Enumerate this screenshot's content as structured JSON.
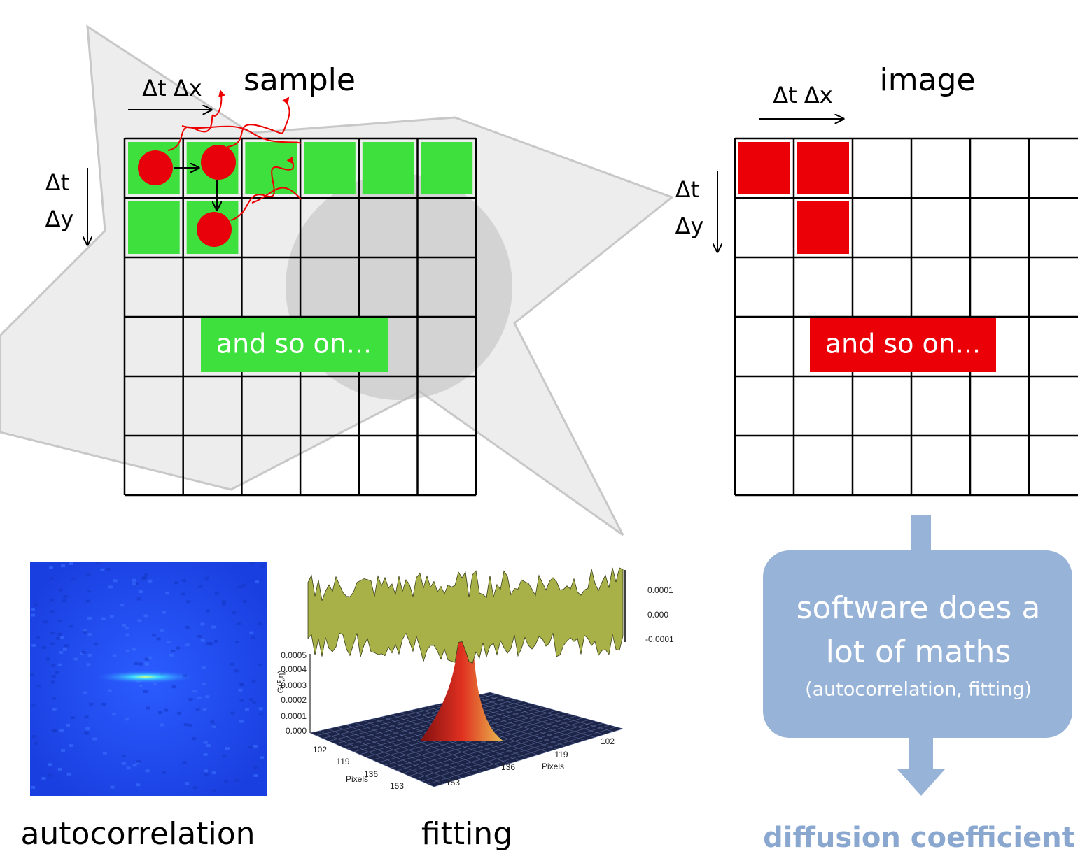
{
  "sample_panel": {
    "title": "sample",
    "x_step": "Δt Δx",
    "y_step_t": "Δt",
    "y_step_y": "Δy",
    "note": "and so on..."
  },
  "image_panel": {
    "title": "image",
    "x_step": "Δt Δx",
    "y_step_t": "Δt",
    "y_step_y": "Δy",
    "note": "and so on..."
  },
  "software_box": {
    "line1": "software does a",
    "line2": "lot of maths",
    "detail": "(autocorrelation, fitting)"
  },
  "result": "diffusion coefficient",
  "captions": {
    "autocorrelation": "autocorrelation",
    "fitting": "fitting"
  },
  "surface_plot": {
    "colorbar_ticks": [
      "0.0001",
      "0.000",
      "-0.0001"
    ],
    "z_ticks": [
      "0.0005",
      "0.0004",
      "0.0003",
      "0.0002",
      "0.0001",
      "0.000"
    ],
    "z_label": "G(ξ,η)",
    "x_ticks": [
      "102",
      "119",
      "136",
      "153"
    ],
    "x_label": "Pixels",
    "y_ticks": [
      "102",
      "119",
      "136",
      "153"
    ],
    "y_label": "Pixels"
  }
}
